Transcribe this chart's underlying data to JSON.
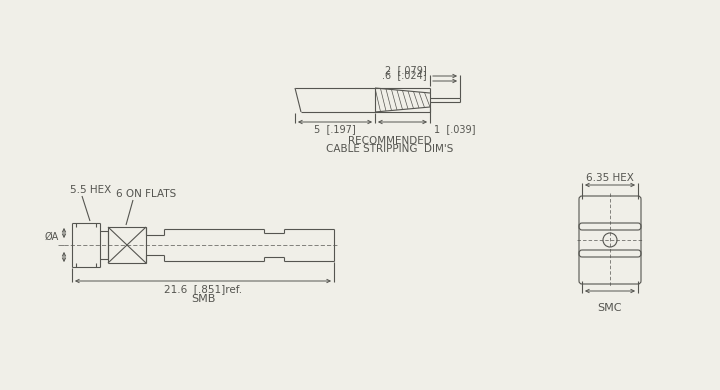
{
  "bg_color": "#f0efe8",
  "line_color": "#555550",
  "cable_strip_label1": "RECOMMENDED",
  "cable_strip_label2": "CABLE STRIPPING  DIM'S",
  "smb_label": "SMB",
  "smc_label": "SMC",
  "dim_2_label": "2  [.079]",
  "dim_06_label": ".6  [.024]",
  "dim_5_label": "5  [.197]",
  "dim_1_label": "1  [.039]",
  "dim_216_label": "21.6  [.851]ref.",
  "dim_55_label": "5.5 HEX",
  "dim_635_label": "6.35 HEX",
  "dim_6on_label": "6 ON FLATS",
  "dim_phiA_label": "ØA"
}
